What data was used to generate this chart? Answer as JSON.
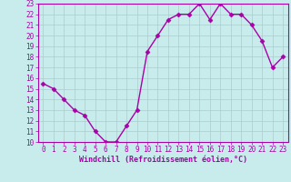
{
  "x": [
    0,
    1,
    2,
    3,
    4,
    5,
    6,
    7,
    8,
    9,
    10,
    11,
    12,
    13,
    14,
    15,
    16,
    17,
    18,
    19,
    20,
    21,
    22,
    23
  ],
  "y": [
    15.5,
    15.0,
    14.0,
    13.0,
    12.5,
    11.0,
    10.0,
    10.0,
    11.5,
    13.0,
    18.5,
    20.0,
    21.5,
    22.0,
    22.0,
    23.0,
    21.5,
    23.0,
    22.0,
    22.0,
    21.0,
    19.5,
    17.0,
    18.0
  ],
  "line_color": "#aa00aa",
  "marker": "D",
  "marker_size": 2.5,
  "bg_color": "#c8ecec",
  "grid_color": "#aacccc",
  "xlabel": "Windchill (Refroidissement éolien,°C)",
  "xlim": [
    -0.5,
    23.5
  ],
  "ylim": [
    10,
    23
  ],
  "yticks": [
    10,
    11,
    12,
    13,
    14,
    15,
    16,
    17,
    18,
    19,
    20,
    21,
    22,
    23
  ],
  "xticks": [
    0,
    1,
    2,
    3,
    4,
    5,
    6,
    7,
    8,
    9,
    10,
    11,
    12,
    13,
    14,
    15,
    16,
    17,
    18,
    19,
    20,
    21,
    22,
    23
  ],
  "tick_color": "#aa00aa",
  "label_color": "#aa00aa",
  "tick_fontsize": 5.5,
  "xlabel_fontsize": 6.0,
  "spine_color": "#aa00aa",
  "linewidth": 1.0
}
